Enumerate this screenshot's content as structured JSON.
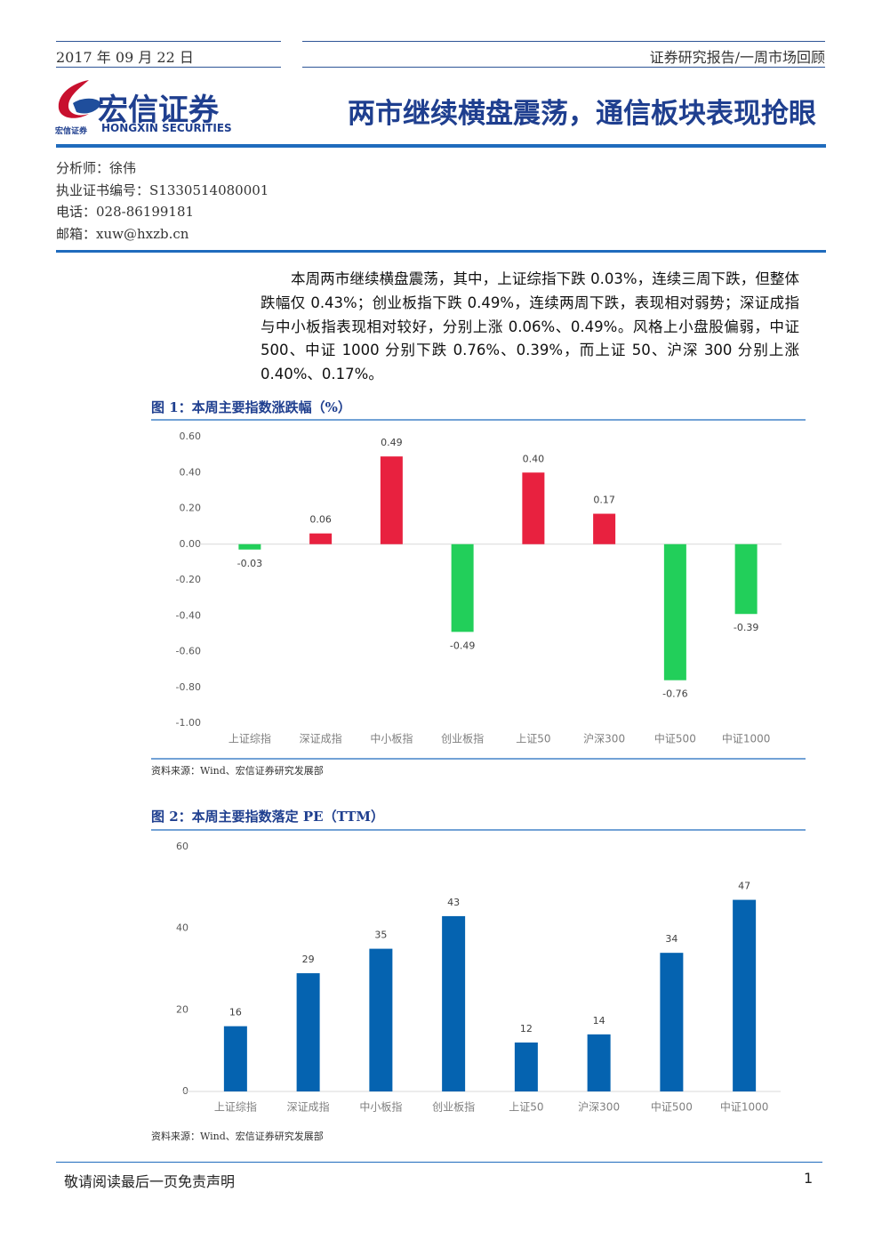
{
  "header": {
    "date": "2017 年 09 月 22 日",
    "report_type": "证券研究报告/一周市场回顾",
    "logo_cn": "宏信证券",
    "logo_en": "HONGXIN SECURITIES",
    "title": "两市继续横盘震荡，通信板块表现抢眼"
  },
  "analyst": [
    "分析师：徐伟",
    "执业证书编号：S1330514080001",
    "电话：028-86199181",
    "邮箱：xuw@hxzb.cn"
  ],
  "summary": "本周两市继续横盘震荡，其中，上证综指下跌 0.03%，连续三周下跌，但整体跌幅仅 0.43%；创业板指下跌 0.49%，连续两周下跌，表现相对弱势；深证成指与中小板指表现相对较好，分别上涨 0.06%、0.49%。风格上小盘股偏弱，中证 500、中证 1000 分别下跌 0.76%、0.39%，而上证 50、沪深 300 分别上涨 0.40%、0.17%。",
  "chart_data": [
    {
      "type": "bar",
      "title": "图 1：本周主要指数涨跌幅（%）",
      "source": "资料来源：Wind、宏信证券研究发展部",
      "categories": [
        "上证综指",
        "深证成指",
        "中小板指",
        "创业板指",
        "上证50",
        "沪深300",
        "中证500",
        "中证1000"
      ],
      "values": [
        -0.03,
        0.06,
        0.49,
        -0.49,
        0.4,
        0.17,
        -0.76,
        -0.39
      ],
      "value_labels": [
        "-0.03",
        "0.06",
        "0.49",
        "-0.49",
        "0.40",
        "0.17",
        "-0.76",
        "-0.39"
      ],
      "colors": {
        "positive": "#e8213f",
        "negative": "#22cf5a"
      },
      "ylim": [
        -1,
        0.6
      ],
      "yticks": [
        {
          "value": 0.6,
          "label": "0.60"
        },
        {
          "value": 0.4,
          "label": "0.40"
        },
        {
          "value": 0.2,
          "label": "0.20"
        },
        {
          "value": 0,
          "label": "0.00"
        },
        {
          "value": -0.2,
          "label": "-0.20"
        },
        {
          "value": -0.4,
          "label": "-0.40"
        },
        {
          "value": -0.6,
          "label": "-0.60"
        },
        {
          "value": -0.8,
          "label": "-0.80"
        },
        {
          "value": -1,
          "label": "-1.00"
        }
      ],
      "grid": false
    },
    {
      "type": "bar",
      "title": "图 2：本周主要指数落定 PE（TTM）",
      "source": "资料来源：Wind、宏信证券研究发展部",
      "categories": [
        "上证综指",
        "深证成指",
        "中小板指",
        "创业板指",
        "上证50",
        "沪深300",
        "中证500",
        "中证1000"
      ],
      "values": [
        16,
        29,
        35,
        43,
        12,
        14,
        34,
        47
      ],
      "color": "#0563b0",
      "ylim": [
        0,
        60
      ],
      "yticks": [
        0,
        20,
        40,
        60
      ],
      "grid": false
    }
  ],
  "footer": {
    "disclaimer": "敬请阅读最后一页免责声明",
    "page": "1"
  }
}
